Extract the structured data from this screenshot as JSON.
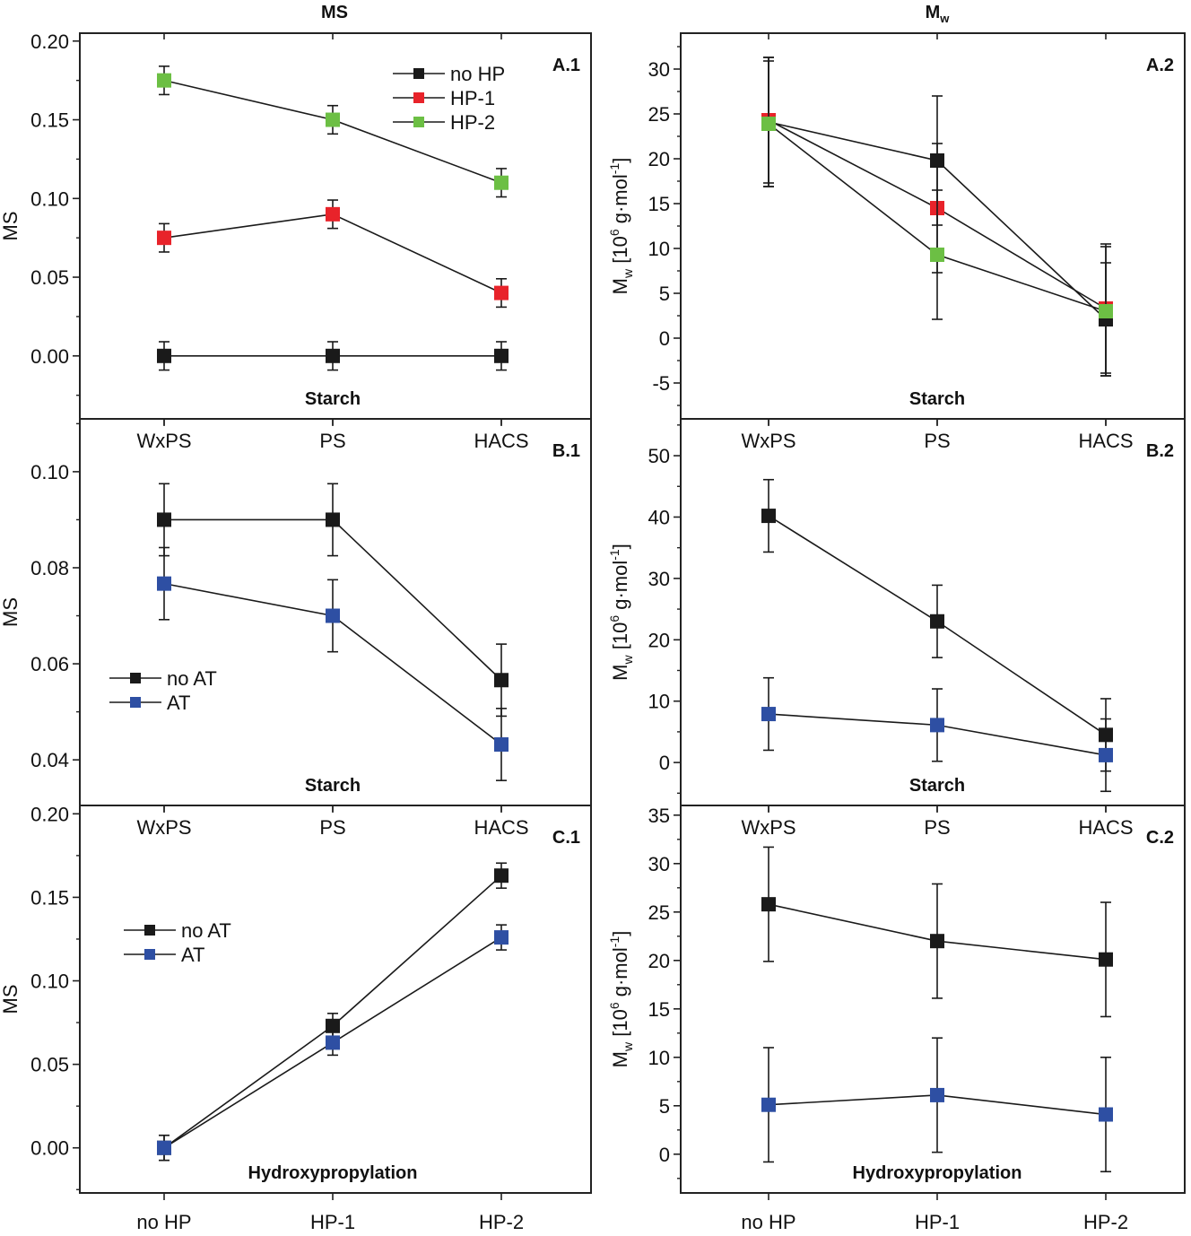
{
  "columns": [
    {
      "title": "MS"
    },
    {
      "title_main": "M",
      "title_sub": "w"
    }
  ],
  "chart_data": [
    {
      "id": "A.1",
      "panel_label": "A.1",
      "type": "line",
      "categories": [
        "WxPS",
        "PS",
        "HACS"
      ],
      "group_label": "Starch",
      "ylabel": "MS",
      "ylim": [
        -0.04,
        0.205
      ],
      "yticks": [
        "0.00",
        "0.05",
        "0.10",
        "0.15",
        "0.20"
      ],
      "legend": {
        "position": "top-right"
      },
      "series": [
        {
          "name": "no HP",
          "color": "#1a1a1a",
          "values": [
            0.0,
            0.0,
            0.0
          ],
          "errors": [
            0.009,
            0.009,
            0.009
          ]
        },
        {
          "name": "HP-1",
          "color": "#e8232a",
          "values": [
            0.075,
            0.09,
            0.04
          ],
          "errors": [
            0.009,
            0.009,
            0.009
          ]
        },
        {
          "name": "HP-2",
          "color": "#6cbf44",
          "values": [
            0.175,
            0.15,
            0.11
          ],
          "errors": [
            0.009,
            0.009,
            0.009
          ]
        }
      ]
    },
    {
      "id": "A.2",
      "panel_label": "A.2",
      "type": "line",
      "categories": [
        "WxPS",
        "PS",
        "HACS"
      ],
      "group_label": "Starch",
      "ylabel": {
        "main": "M",
        "sub": "w",
        "unit": " [10",
        "unit_sup": "6",
        "unit2": " g·mol",
        "unit2_sup": "-1",
        "unit3": "]"
      },
      "ylim": [
        -9,
        34
      ],
      "yticks": [
        "-5",
        "0",
        "5",
        "10",
        "15",
        "20",
        "25",
        "30"
      ],
      "series": [
        {
          "name": "no HP",
          "color": "#1a1a1a",
          "values": [
            24.1,
            19.8,
            2.1
          ],
          "errors": [
            7.2,
            7.2,
            6.3
          ]
        },
        {
          "name": "HP-1",
          "color": "#e8232a",
          "values": [
            24.3,
            14.5,
            3.3
          ],
          "errors": [
            7.0,
            7.2,
            7.2
          ]
        },
        {
          "name": "HP-2",
          "color": "#6cbf44",
          "values": [
            23.9,
            9.3,
            3.0
          ],
          "errors": [
            7.0,
            7.2,
            7.2
          ]
        }
      ]
    },
    {
      "id": "B.1",
      "panel_label": "B.1",
      "type": "line",
      "categories": [
        "WxPS",
        "PS",
        "HACS"
      ],
      "group_label": "Starch",
      "ylabel": "MS",
      "ylim": [
        0.0305,
        0.111
      ],
      "yticks": [
        "0.04",
        "0.06",
        "0.08",
        "0.10"
      ],
      "legend": {
        "position": "bottom-left"
      },
      "series": [
        {
          "name": "no AT",
          "color": "#1a1a1a",
          "values": [
            0.09,
            0.09,
            0.0566
          ],
          "errors": [
            0.0075,
            0.0075,
            0.0075
          ]
        },
        {
          "name": "AT",
          "color": "#2e4fa3",
          "values": [
            0.0767,
            0.07,
            0.0432
          ],
          "errors": [
            0.0075,
            0.0075,
            0.0075
          ]
        }
      ]
    },
    {
      "id": "B.2",
      "panel_label": "B.2",
      "type": "line",
      "categories": [
        "WxPS",
        "PS",
        "HACS"
      ],
      "group_label": "Starch",
      "ylabel": {
        "main": "M",
        "sub": "w",
        "unit": " [10",
        "unit_sup": "6",
        "unit2": " g·mol",
        "unit2_sup": "-1",
        "unit3": "]"
      },
      "ylim": [
        -7,
        56
      ],
      "yticks": [
        "0",
        "10",
        "20",
        "30",
        "40",
        "50"
      ],
      "series": [
        {
          "name": "no AT",
          "color": "#1a1a1a",
          "values": [
            40.2,
            23.0,
            4.5
          ],
          "errors": [
            5.9,
            5.9,
            5.9
          ]
        },
        {
          "name": "AT",
          "color": "#2e4fa3",
          "values": [
            7.9,
            6.1,
            1.2
          ],
          "errors": [
            5.9,
            5.9,
            5.9
          ]
        }
      ]
    },
    {
      "id": "C.1",
      "panel_label": "C.1",
      "type": "line",
      "categories": [
        "no HP",
        "HP-1",
        "HP-2"
      ],
      "group_label": "Hydroxypropylation",
      "ylabel": "MS",
      "ylim": [
        -0.027,
        0.205
      ],
      "yticks": [
        "0.00",
        "0.05",
        "0.10",
        "0.15",
        "0.20"
      ],
      "legend": {
        "position": "top-left"
      },
      "series": [
        {
          "name": "no AT",
          "color": "#1a1a1a",
          "values": [
            0.0,
            0.073,
            0.163
          ],
          "errors": [
            0.0075,
            0.0075,
            0.0075
          ]
        },
        {
          "name": "AT",
          "color": "#2e4fa3",
          "values": [
            0.0,
            0.063,
            0.126
          ],
          "errors": [
            0.0075,
            0.0075,
            0.0075
          ]
        }
      ]
    },
    {
      "id": "C.2",
      "panel_label": "C.2",
      "type": "line",
      "categories": [
        "no HP",
        "HP-1",
        "HP-2"
      ],
      "group_label": "Hydroxypropylation",
      "ylabel": {
        "main": "M",
        "sub": "w",
        "unit": " [10",
        "unit_sup": "6",
        "unit2": " g·mol",
        "unit2_sup": "-1",
        "unit3": "]"
      },
      "ylim": [
        -4,
        36
      ],
      "yticks": [
        "0",
        "5",
        "10",
        "15",
        "20",
        "25",
        "30",
        "35"
      ],
      "series": [
        {
          "name": "no AT",
          "color": "#1a1a1a",
          "values": [
            25.8,
            22.0,
            20.1
          ],
          "errors": [
            5.9,
            5.9,
            5.9
          ]
        },
        {
          "name": "AT",
          "color": "#2e4fa3",
          "values": [
            5.1,
            6.1,
            4.1
          ],
          "errors": [
            5.9,
            5.9,
            5.9
          ]
        }
      ]
    }
  ]
}
